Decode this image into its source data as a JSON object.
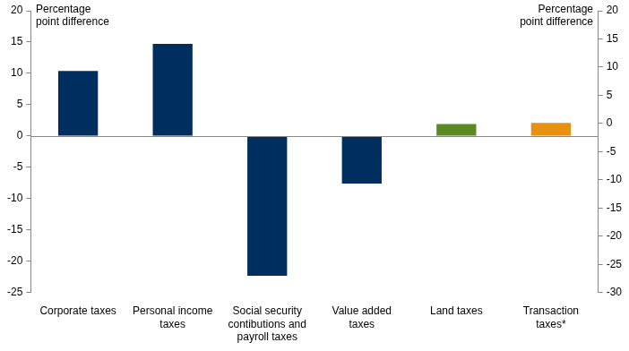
{
  "chart_data": {
    "type": "bar",
    "categories": [
      "Corporate taxes",
      "Personal income taxes",
      "Social security contibutions and payroll taxes",
      "Value added taxes",
      "Land taxes",
      "Transaction taxes*"
    ],
    "values": [
      10.4,
      14.7,
      -22.3,
      -7.6,
      1.9,
      2.1
    ],
    "colors": [
      "#002f5f",
      "#002f5f",
      "#002f5f",
      "#002f5f",
      "#5b8a24",
      "#e8900f"
    ],
    "ylabel": "Percentage point difference",
    "y2label": "Percentage point difference",
    "ylim": [
      -25,
      20
    ],
    "yticks": [
      -25,
      -20,
      -15,
      -10,
      -5,
      0,
      5,
      10,
      15,
      20
    ],
    "y2lim": [
      -30,
      20
    ],
    "y2ticks": [
      -30,
      -25,
      -20,
      -15,
      -10,
      -5,
      0,
      5,
      10,
      15,
      20
    ],
    "grid": false
  }
}
